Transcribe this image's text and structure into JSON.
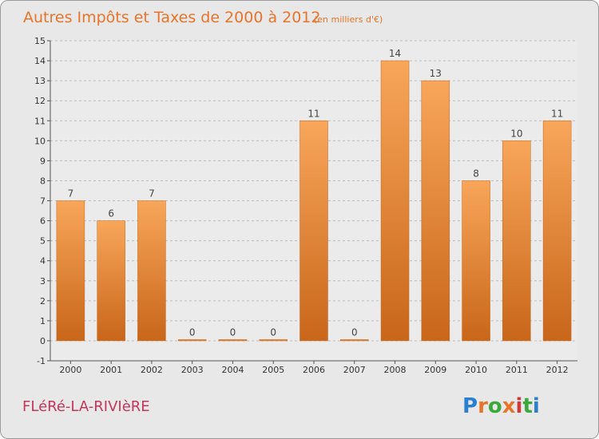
{
  "header": {
    "title": "Autres Impôts et Taxes de 2000 à 2012",
    "unit": "(en milliers d'€)"
  },
  "footer": {
    "commune": "FLéRé-LA-RIVIèRE",
    "logo_letters": [
      "P",
      "r",
      "o",
      "x",
      "i",
      "t",
      "i"
    ],
    "logo_colors": [
      "#2a7fd0",
      "#e8742a",
      "#3aa83a",
      "#e8742a",
      "#d03a3a",
      "#3aa83a",
      "#2a7fd0"
    ]
  },
  "colors": {
    "bar": "#f0923e",
    "bar_dark": "#c8661a",
    "grid": "#bdbdbd"
  },
  "chart_data": {
    "type": "bar",
    "categories": [
      "2000",
      "2001",
      "2002",
      "2003",
      "2004",
      "2005",
      "2006",
      "2007",
      "2008",
      "2009",
      "2010",
      "2011",
      "2012"
    ],
    "values": [
      7,
      6,
      7,
      0,
      0,
      0,
      11,
      0,
      14,
      13,
      8,
      10,
      11
    ],
    "ylim": [
      -1,
      15
    ],
    "yticks": [
      -1,
      0,
      1,
      2,
      3,
      4,
      5,
      6,
      7,
      8,
      9,
      10,
      11,
      12,
      13,
      14,
      15
    ],
    "grid": true
  }
}
